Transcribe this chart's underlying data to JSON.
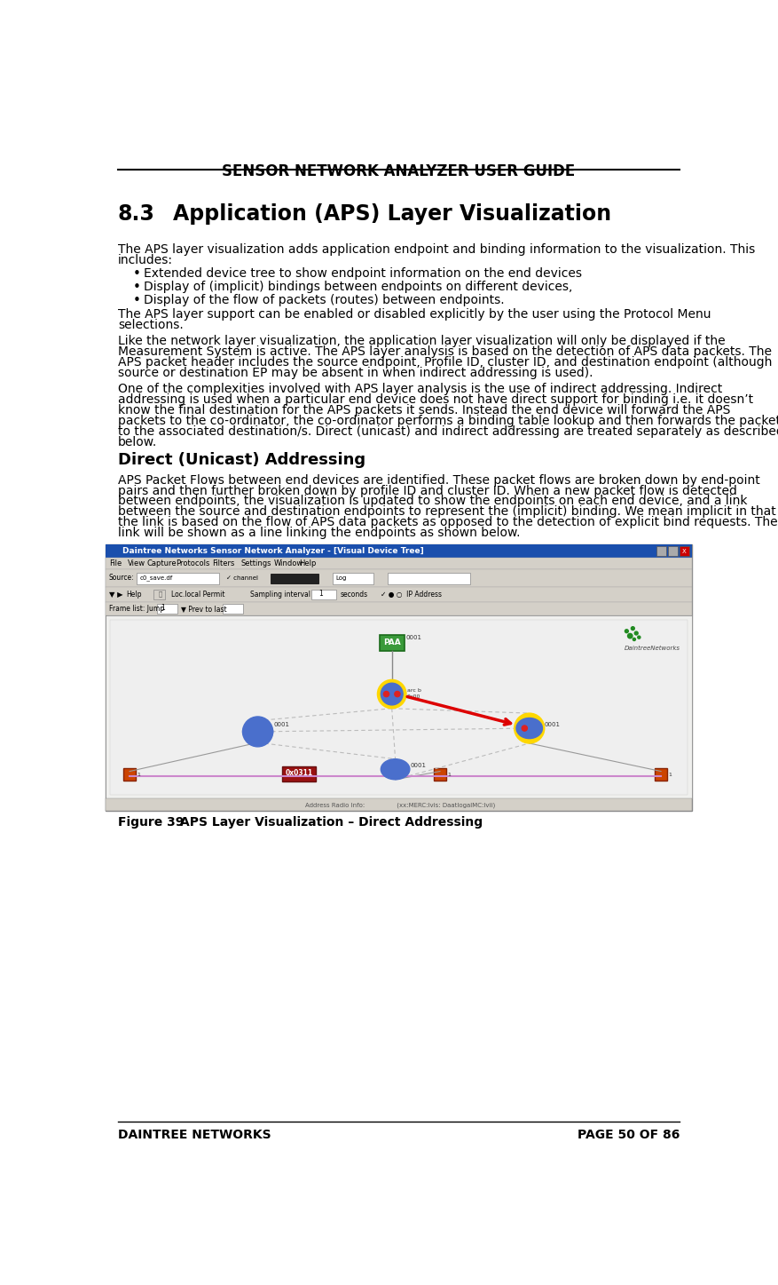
{
  "title": "SENSOR NETWORK ANALYZER USER GUIDE",
  "section": "8.3",
  "section_title": "Application (APS) Layer Visualization",
  "bullets": [
    "Extended device tree to show endpoint information on the end devices",
    "Display of (implicit) bindings between endpoints on different devices,",
    "Display of the flow of packets (routes) between endpoints."
  ],
  "subsection_title": "Direct (Unicast) Addressing",
  "figure_label": "Figure 39",
  "figure_caption": "APS Layer Visualization – Direct Addressing",
  "footer_left": "DAINTREE NETWORKS",
  "footer_right": "PAGE 50 OF 86",
  "bg_color": "#ffffff",
  "title_color": "#000000",
  "text_color": "#000000",
  "footer_color": "#000000"
}
